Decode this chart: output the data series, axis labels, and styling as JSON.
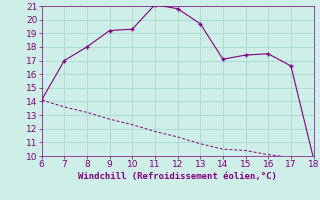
{
  "x": [
    6,
    7,
    8,
    9,
    10,
    11,
    12,
    13,
    14,
    15,
    16,
    17,
    18
  ],
  "y_main": [
    14.1,
    17.0,
    18.0,
    19.2,
    19.3,
    21.1,
    20.8,
    19.7,
    17.1,
    17.4,
    17.5,
    16.6,
    9.8
  ],
  "y_dash": [
    14.1,
    13.6,
    13.2,
    12.7,
    12.3,
    11.8,
    11.4,
    10.9,
    10.5,
    10.4,
    10.1,
    9.9,
    9.8
  ],
  "line_color": "#800080",
  "background_color": "#ceeee8",
  "grid_color": "#a8d8d0",
  "xlabel": "Windchill (Refroidissement éolien,°C)",
  "xlim": [
    6,
    18
  ],
  "ylim": [
    10,
    21
  ],
  "xticks": [
    6,
    7,
    8,
    9,
    10,
    11,
    12,
    13,
    14,
    15,
    16,
    17,
    18
  ],
  "yticks": [
    10,
    11,
    12,
    13,
    14,
    15,
    16,
    17,
    18,
    19,
    20,
    21
  ],
  "tick_color": "#800080",
  "label_color": "#800080",
  "font_size": 6.5
}
